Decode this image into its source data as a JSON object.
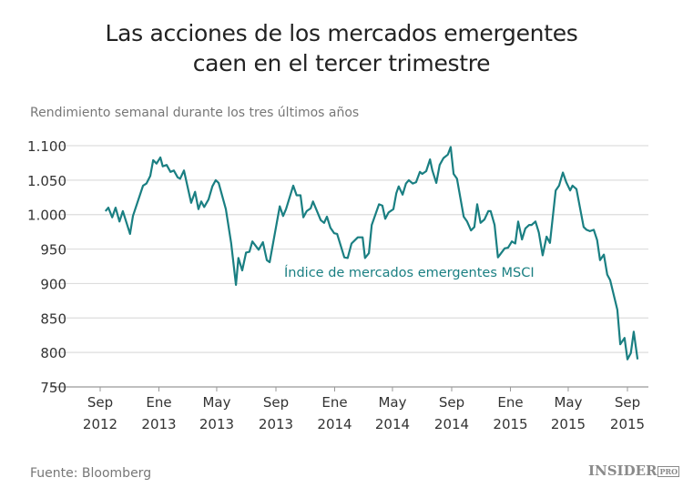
{
  "chart_data": {
    "type": "line",
    "title": "Las acciones de los mercados emergentes caen en el tercer trimestre",
    "title_lines": [
      "Las acciones de los mercados emergentes",
      "caen en el tercer trimestre"
    ],
    "subtitle": "Rendimiento semanal durante los tres últimos años",
    "source": "Fuente: Bloomberg",
    "brand": "INSIDER PRO",
    "ylim": [
      750,
      1100
    ],
    "yticks": [
      750,
      800,
      850,
      900,
      950,
      1000,
      1050,
      1100
    ],
    "ytick_labels": [
      "750",
      "800",
      "850",
      "900",
      "950",
      "1.000",
      "1.050",
      "1.100"
    ],
    "xticks": [
      {
        "date": "2012-09-01",
        "label": [
          "Sep",
          "2012"
        ]
      },
      {
        "date": "2013-01-01",
        "label": [
          "Ene",
          "2013"
        ]
      },
      {
        "date": "2013-05-01",
        "label": [
          "May",
          "2013"
        ]
      },
      {
        "date": "2013-09-01",
        "label": [
          "Sep",
          "2013"
        ]
      },
      {
        "date": "2014-01-01",
        "label": [
          "Ene",
          "2014"
        ]
      },
      {
        "date": "2014-05-01",
        "label": [
          "May",
          "2014"
        ]
      },
      {
        "date": "2014-09-01",
        "label": [
          "Sep",
          "2014"
        ]
      },
      {
        "date": "2015-01-01",
        "label": [
          "Ene",
          "2015"
        ]
      },
      {
        "date": "2015-05-01",
        "label": [
          "May",
          "2015"
        ]
      },
      {
        "date": "2015-09-01",
        "label": [
          "Sep",
          "2015"
        ]
      }
    ],
    "grid": true,
    "color": "#1a7f82",
    "series": [
      {
        "name": "Índice de mercados emergentes MSCI",
        "points": [
          [
            "2012-09-12",
            1005
          ],
          [
            "2012-09-18",
            1010
          ],
          [
            "2012-09-26",
            996
          ],
          [
            "2012-10-03",
            1010
          ],
          [
            "2012-10-11",
            990
          ],
          [
            "2012-10-18",
            1005
          ],
          [
            "2012-11-02",
            972
          ],
          [
            "2012-11-08",
            998
          ],
          [
            "2012-11-29",
            1042
          ],
          [
            "2012-12-06",
            1045
          ],
          [
            "2012-12-14",
            1056
          ],
          [
            "2012-12-20",
            1079
          ],
          [
            "2012-12-27",
            1074
          ],
          [
            "2013-01-04",
            1083
          ],
          [
            "2013-01-09",
            1070
          ],
          [
            "2013-01-17",
            1072
          ],
          [
            "2013-01-25",
            1062
          ],
          [
            "2013-02-01",
            1064
          ],
          [
            "2013-02-09",
            1054
          ],
          [
            "2013-02-14",
            1052
          ],
          [
            "2013-02-22",
            1064
          ],
          [
            "2013-03-09",
            1017
          ],
          [
            "2013-03-17",
            1033
          ],
          [
            "2013-03-24",
            1008
          ],
          [
            "2013-03-30",
            1019
          ],
          [
            "2013-04-05",
            1011
          ],
          [
            "2013-04-14",
            1022
          ],
          [
            "2013-04-22",
            1041
          ],
          [
            "2013-04-29",
            1050
          ],
          [
            "2013-05-05",
            1046
          ],
          [
            "2013-05-20",
            1008
          ],
          [
            "2013-05-31",
            959
          ],
          [
            "2013-06-10",
            898
          ],
          [
            "2013-06-15",
            937
          ],
          [
            "2013-06-23",
            919
          ],
          [
            "2013-07-01",
            945
          ],
          [
            "2013-07-08",
            946
          ],
          [
            "2013-07-14",
            961
          ],
          [
            "2013-07-27",
            949
          ],
          [
            "2013-08-05",
            960
          ],
          [
            "2013-08-13",
            934
          ],
          [
            "2013-08-19",
            931
          ],
          [
            "2013-09-09",
            1012
          ],
          [
            "2013-09-16",
            998
          ],
          [
            "2013-09-22",
            1008
          ],
          [
            "2013-10-07",
            1042
          ],
          [
            "2013-10-14",
            1028
          ],
          [
            "2013-10-22",
            1028
          ],
          [
            "2013-10-28",
            996
          ],
          [
            "2013-11-04",
            1005
          ],
          [
            "2013-11-12",
            1009
          ],
          [
            "2013-11-17",
            1019
          ],
          [
            "2013-12-03",
            992
          ],
          [
            "2013-12-10",
            988
          ],
          [
            "2013-12-16",
            997
          ],
          [
            "2013-12-23",
            981
          ],
          [
            "2013-12-31",
            973
          ],
          [
            "2014-01-06",
            972
          ],
          [
            "2014-01-21",
            938
          ],
          [
            "2014-01-28",
            937
          ],
          [
            "2014-02-05",
            958
          ],
          [
            "2014-02-18",
            967
          ],
          [
            "2014-02-28",
            967
          ],
          [
            "2014-03-05",
            937
          ],
          [
            "2014-03-13",
            944
          ],
          [
            "2014-03-19",
            985
          ],
          [
            "2014-04-03",
            1015
          ],
          [
            "2014-04-10",
            1013
          ],
          [
            "2014-04-16",
            994
          ],
          [
            "2014-04-23",
            1003
          ],
          [
            "2014-05-03",
            1008
          ],
          [
            "2014-05-09",
            1031
          ],
          [
            "2014-05-14",
            1041
          ],
          [
            "2014-05-22",
            1029
          ],
          [
            "2014-05-29",
            1045
          ],
          [
            "2014-06-04",
            1050
          ],
          [
            "2014-06-12",
            1045
          ],
          [
            "2014-06-19",
            1047
          ],
          [
            "2014-06-27",
            1062
          ],
          [
            "2014-07-02",
            1059
          ],
          [
            "2014-07-10",
            1063
          ],
          [
            "2014-07-18",
            1080
          ],
          [
            "2014-07-23",
            1064
          ],
          [
            "2014-07-31",
            1046
          ],
          [
            "2014-08-07",
            1072
          ],
          [
            "2014-08-15",
            1082
          ],
          [
            "2014-08-24",
            1087
          ],
          [
            "2014-08-30",
            1098
          ],
          [
            "2014-09-05",
            1059
          ],
          [
            "2014-09-12",
            1052
          ],
          [
            "2014-09-26",
            997
          ],
          [
            "2014-10-03",
            990
          ],
          [
            "2014-10-11",
            977
          ],
          [
            "2014-10-18",
            982
          ],
          [
            "2014-10-24",
            1015
          ],
          [
            "2014-10-31",
            988
          ],
          [
            "2014-11-08",
            993
          ],
          [
            "2014-11-16",
            1005
          ],
          [
            "2014-11-21",
            1005
          ],
          [
            "2014-11-29",
            985
          ],
          [
            "2014-12-06",
            938
          ],
          [
            "2014-12-20",
            951
          ],
          [
            "2014-12-27",
            952
          ],
          [
            "2015-01-04",
            961
          ],
          [
            "2015-01-11",
            958
          ],
          [
            "2015-01-17",
            990
          ],
          [
            "2015-01-25",
            964
          ],
          [
            "2015-02-01",
            980
          ],
          [
            "2015-02-09",
            985
          ],
          [
            "2015-02-14",
            985
          ],
          [
            "2015-02-22",
            990
          ],
          [
            "2015-03-01",
            974
          ],
          [
            "2015-03-09",
            941
          ],
          [
            "2015-03-17",
            968
          ],
          [
            "2015-03-24",
            959
          ],
          [
            "2015-04-05",
            1035
          ],
          [
            "2015-04-12",
            1042
          ],
          [
            "2015-04-20",
            1061
          ],
          [
            "2015-04-27",
            1047
          ],
          [
            "2015-05-05",
            1035
          ],
          [
            "2015-05-10",
            1042
          ],
          [
            "2015-05-18",
            1037
          ],
          [
            "2015-06-02",
            982
          ],
          [
            "2015-06-08",
            978
          ],
          [
            "2015-06-15",
            976
          ],
          [
            "2015-06-23",
            978
          ],
          [
            "2015-06-30",
            963
          ],
          [
            "2015-07-06",
            934
          ],
          [
            "2015-07-14",
            942
          ],
          [
            "2015-07-21",
            913
          ],
          [
            "2015-07-27",
            905
          ],
          [
            "2015-08-11",
            862
          ],
          [
            "2015-08-17",
            812
          ],
          [
            "2015-08-26",
            821
          ],
          [
            "2015-09-01",
            790
          ],
          [
            "2015-09-08",
            799
          ],
          [
            "2015-09-14",
            830
          ],
          [
            "2015-09-22",
            790
          ]
        ]
      }
    ]
  }
}
